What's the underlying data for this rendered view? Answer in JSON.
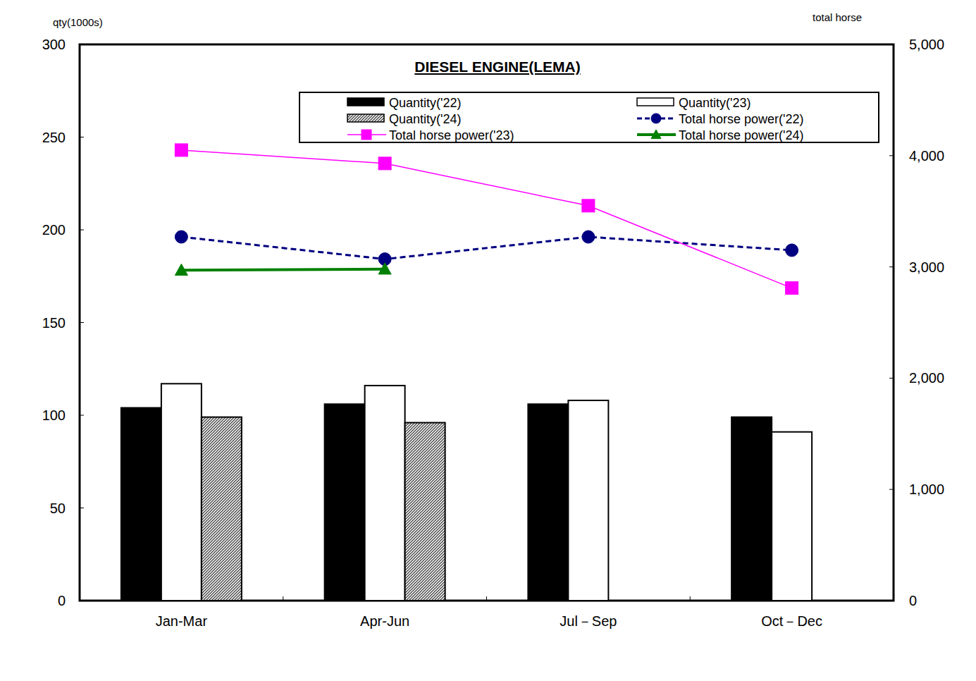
{
  "chart_data": {
    "type": "bar",
    "title": "DIESEL ENGINE(LEMA)",
    "y_label": "qty(1000s)",
    "y2_label": "total horse",
    "categories": [
      "Jan-Mar",
      "Apr-Jun",
      "Jul－Sep",
      "Oct－Dec"
    ],
    "ylim": [
      0,
      300
    ],
    "yticks": [
      0,
      50,
      100,
      150,
      200,
      250,
      300
    ],
    "y2lim": [
      0,
      5000
    ],
    "y2ticks": [
      0,
      {
        "value": 1000,
        "label": "1,000"
      },
      {
        "value": 2000,
        "label": "2,000"
      },
      {
        "value": 3000,
        "label": "3,000"
      },
      {
        "value": 4000,
        "label": "4,000"
      },
      {
        "value": 5000,
        "label": "5,000"
      }
    ],
    "grid": false,
    "legend": "top",
    "series": [
      {
        "name": "Quantity('22)",
        "type": "bar",
        "color": "#000000",
        "values": [
          104,
          106,
          106,
          99
        ]
      },
      {
        "name": "Quantity('23)",
        "type": "bar",
        "color": "#ffffff",
        "values": [
          117,
          116,
          108,
          91
        ]
      },
      {
        "name": "Quantity('24)",
        "type": "bar",
        "color": "#404040",
        "marker": "hatch",
        "values": [
          99,
          96,
          null,
          null
        ]
      },
      {
        "name": "Total horse power('22)",
        "type": "line",
        "axis": "y2",
        "color": "#000080",
        "marker": "circle",
        "line_style": "dashed",
        "values": [
          3270,
          3070,
          3270,
          3150
        ]
      },
      {
        "name": "Total horse power('23)",
        "type": "line",
        "axis": "y2",
        "color": "#ff00ff",
        "marker": "square",
        "line_style": "solid",
        "values": [
          4050,
          3930,
          3550,
          2810
        ]
      },
      {
        "name": "Total horse power('24)",
        "type": "line",
        "axis": "y2",
        "color": "#008000",
        "marker": "triangle",
        "line_style": "solid",
        "values": [
          2970,
          2980,
          null,
          null
        ]
      }
    ]
  }
}
